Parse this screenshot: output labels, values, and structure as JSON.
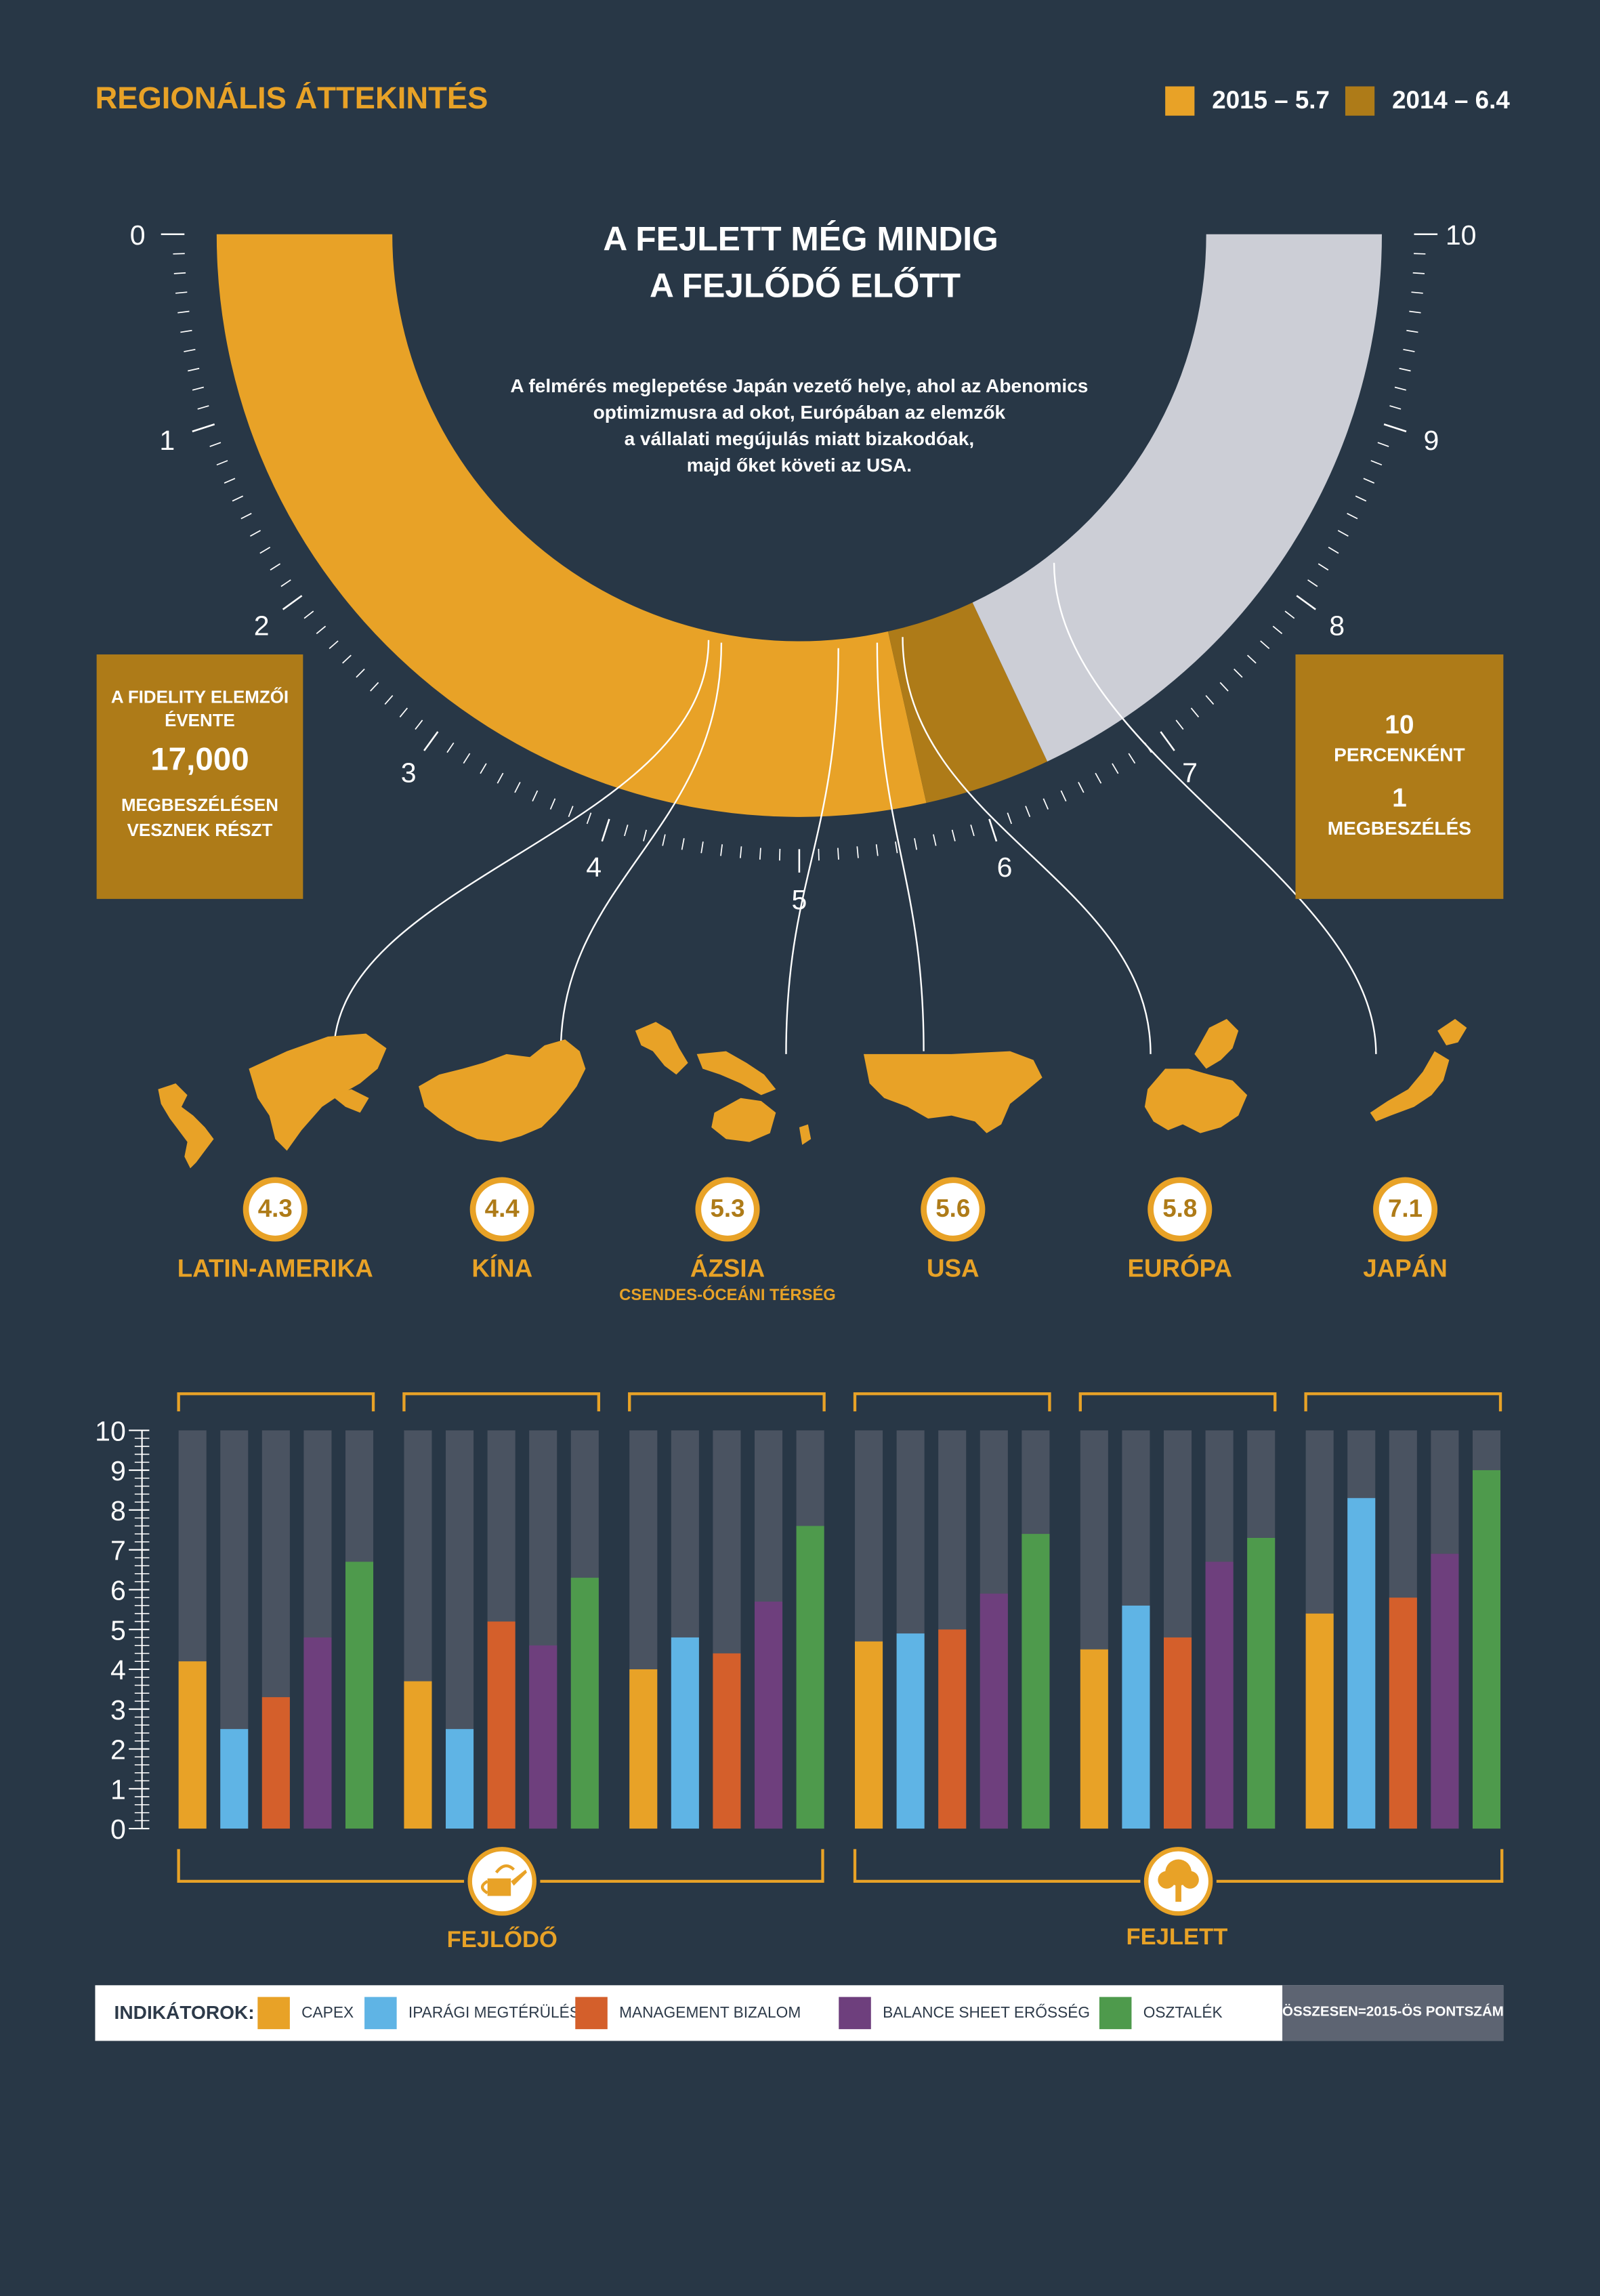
{
  "page_title": "REGIONÁLIS ÁTTEKINTÉS",
  "legend": [
    {
      "label": "2015 – 5.7",
      "color": "#e8a227"
    },
    {
      "label": "2014 – 6.4",
      "color": "#ae7b18"
    }
  ],
  "gauge": {
    "headline_line1": "A FEJLETT MÉG MINDIG",
    "headline_line2": "A FEJLŐDŐ ELŐTT",
    "description": [
      "A felmérés meglepetése Japán vezető helye, ahol az Abenomics",
      "optimizmusra ad okot, Európában az elemzők",
      "a vállalati megújulás miatt bizakodóak,",
      "majd őket követi az USA."
    ],
    "scale_labels": [
      "0",
      "1",
      "2",
      "3",
      "4",
      "5",
      "6",
      "7",
      "8",
      "9",
      "10"
    ],
    "value_2015": 5.7,
    "value_2014": 6.4,
    "max": 10
  },
  "left_box": {
    "line1": "A FIDELITY ELEMZŐI",
    "line2": "ÉVENTE",
    "number": "17,000",
    "line3": "MEGBESZÉLÉSEN",
    "line4": "VESZNEK RÉSZT"
  },
  "right_box": {
    "number1": "10",
    "line1": "PERCENKÉNT",
    "number2": "1",
    "line2": "MEGBESZÉLÉS"
  },
  "regions": [
    {
      "name": "LATIN-AMERIKA",
      "score": "4.3",
      "subtitle": "",
      "map_icon": "latin-america-map-icon",
      "scores": [
        4.2,
        2.5,
        3.3,
        4.8,
        6.7
      ]
    },
    {
      "name": "KÍNA",
      "score": "4.4",
      "subtitle": "",
      "map_icon": "china-map-icon",
      "scores": [
        3.7,
        2.5,
        5.2,
        4.6,
        6.3
      ]
    },
    {
      "name": "ÁZSIA",
      "score": "5.3",
      "subtitle": "CSENDES-ÓCEÁNI TÉRSÉG",
      "map_icon": "asia-pacific-map-icon",
      "scores": [
        4.0,
        4.8,
        4.4,
        5.7,
        7.6
      ]
    },
    {
      "name": "USA",
      "score": "5.6",
      "subtitle": "",
      "map_icon": "usa-map-icon",
      "scores": [
        4.7,
        4.9,
        5.0,
        5.9,
        7.4
      ]
    },
    {
      "name": "EURÓPA",
      "score": "5.8",
      "subtitle": "",
      "map_icon": "europe-map-icon",
      "scores": [
        4.5,
        5.6,
        4.8,
        6.7,
        7.3
      ]
    },
    {
      "name": "JAPÁN",
      "score": "7.1",
      "subtitle": "",
      "map_icon": "japan-map-icon",
      "scores": [
        5.4,
        8.3,
        5.8,
        6.9,
        9.0
      ]
    }
  ],
  "groups": [
    {
      "label": "FEJLŐDŐ",
      "icon": "watering-can-icon"
    },
    {
      "label": "FEJLETT",
      "icon": "tree-icon"
    }
  ],
  "indicators": {
    "title": "INDIKÁTOROK:",
    "items": [
      {
        "label": "CAPEX",
        "color": "#e8a227"
      },
      {
        "label": "IPARÁGI MEGTÉRÜLÉS",
        "color": "#5fb4e5"
      },
      {
        "label": "MANAGEMENT BIZALOM",
        "color": "#d45f2b"
      },
      {
        "label": "BALANCE SHEET ERŐSSÉG",
        "color": "#6e3f7d"
      },
      {
        "label": "OSZTALÉK",
        "color": "#4e9a4c"
      }
    ],
    "total_note": "ÖSSZESEN=2015-ÖS PONTSZÁM"
  },
  "colors": {
    "background": "#283746",
    "accent": "#e8a227",
    "dark_gold": "#ae7b18",
    "bar_track": "#4a5361",
    "gauge_rest": "#ccced6"
  },
  "chart_data": {
    "type": "bar",
    "categories": [
      "LATIN-AMERIKA",
      "KÍNA",
      "ÁZSIA",
      "USA",
      "EURÓPA",
      "JAPÁN"
    ],
    "series": [
      {
        "name": "CAPEX",
        "values": [
          4.2,
          3.7,
          4.0,
          4.7,
          4.5,
          5.4
        ]
      },
      {
        "name": "IPARÁGI MEGTÉRÜLÉS",
        "values": [
          2.5,
          2.5,
          4.8,
          4.9,
          5.6,
          8.3
        ]
      },
      {
        "name": "MANAGEMENT BIZALOM",
        "values": [
          3.3,
          5.2,
          4.4,
          5.0,
          4.8,
          5.8
        ]
      },
      {
        "name": "BALANCE SHEET ERŐSSÉG",
        "values": [
          4.8,
          4.6,
          5.7,
          5.9,
          6.7,
          6.9
        ]
      },
      {
        "name": "OSZTALÉK",
        "values": [
          6.7,
          6.3,
          7.6,
          7.4,
          7.3,
          9.0
        ]
      }
    ],
    "ylim": [
      0,
      10
    ],
    "yticks": [
      "0",
      "1",
      "2",
      "3",
      "4",
      "5",
      "6",
      "7",
      "8",
      "9",
      "10"
    ],
    "region_scores": [
      4.3,
      4.4,
      5.3,
      5.6,
      5.8,
      7.1
    ]
  }
}
